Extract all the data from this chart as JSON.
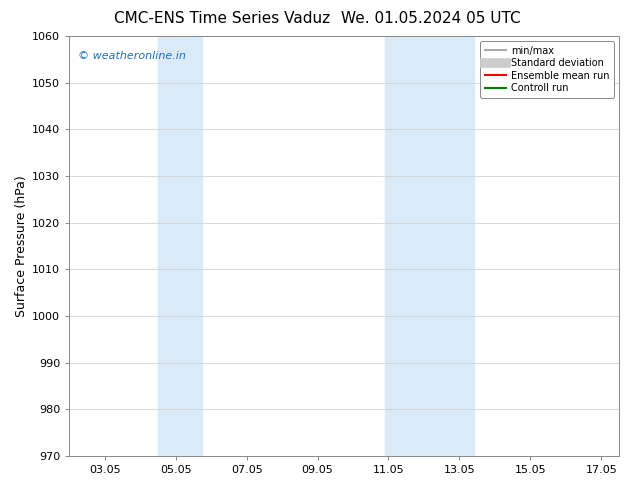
{
  "title_left": "CMC-ENS Time Series Vaduz",
  "title_right": "We. 01.05.2024 05 UTC",
  "ylabel": "Surface Pressure (hPa)",
  "ylim": [
    970,
    1060
  ],
  "yticks": [
    970,
    980,
    990,
    1000,
    1010,
    1020,
    1030,
    1040,
    1050,
    1060
  ],
  "xtick_labels": [
    "03.05",
    "05.05",
    "07.05",
    "09.05",
    "11.05",
    "13.05",
    "15.05",
    "17.05"
  ],
  "xtick_positions": [
    3,
    5,
    7,
    9,
    11,
    13,
    15,
    17
  ],
  "xlim": [
    2.0,
    17.5
  ],
  "shaded_regions": [
    {
      "x_start": 4.5,
      "x_end": 5.75,
      "color": "#daeaf7"
    },
    {
      "x_start": 10.9,
      "x_end": 13.4,
      "color": "#daeaf7"
    }
  ],
  "watermark_text": "© weatheronline.in",
  "watermark_color": "#1a6fc4",
  "legend_items": [
    {
      "label": "min/max",
      "color": "#aaaaaa",
      "lw": 1.5,
      "style": "solid"
    },
    {
      "label": "Standard deviation",
      "color": "#cccccc",
      "lw": 7,
      "style": "solid"
    },
    {
      "label": "Ensemble mean run",
      "color": "red",
      "lw": 1.5,
      "style": "solid"
    },
    {
      "label": "Controll run",
      "color": "green",
      "lw": 1.5,
      "style": "solid"
    }
  ],
  "bg_color": "#ffffff",
  "grid_color": "#cccccc",
  "title_fontsize": 11,
  "tick_fontsize": 8,
  "ylabel_fontsize": 9,
  "watermark_fontsize": 8
}
